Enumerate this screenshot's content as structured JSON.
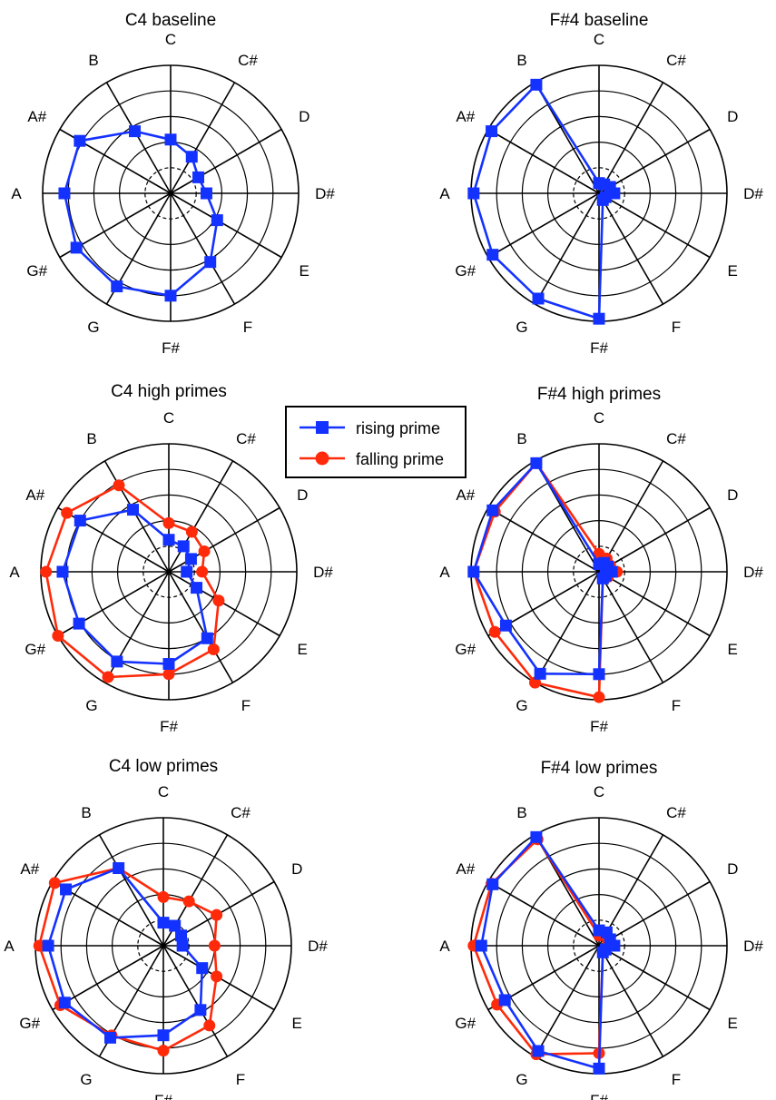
{
  "chart_data": [
    {
      "type": "radar",
      "title": "C4 baseline",
      "axes": [
        "C",
        "C#",
        "D",
        "D#",
        "E",
        "F",
        "F#",
        "G",
        "G#",
        "A",
        "A#",
        "B"
      ],
      "rlim": [
        0,
        1
      ],
      "rings": [
        0.2,
        0.4,
        0.6,
        0.8,
        1.0
      ],
      "series": [
        {
          "key": "rising",
          "values": [
            0.42,
            0.33,
            0.25,
            0.28,
            0.42,
            0.62,
            0.8,
            0.84,
            0.85,
            0.83,
            0.82,
            0.56
          ]
        }
      ]
    },
    {
      "type": "radar",
      "title": "F#4 baseline",
      "axes": [
        "C",
        "C#",
        "D",
        "D#",
        "E",
        "F",
        "F#",
        "G",
        "G#",
        "A",
        "A#",
        "B"
      ],
      "rlim": [
        0,
        1
      ],
      "rings": [
        0.2,
        0.4,
        0.6,
        0.8,
        1.0
      ],
      "series": [
        {
          "key": "rising",
          "values": [
            0.08,
            0.08,
            0.1,
            0.12,
            0.06,
            0.06,
            0.98,
            0.95,
            0.96,
            0.98,
            0.97,
            0.98
          ]
        }
      ]
    },
    {
      "type": "radar",
      "title": "C4 high primes",
      "axes": [
        "C",
        "C#",
        "D",
        "D#",
        "E",
        "F",
        "F#",
        "G",
        "G#",
        "A",
        "A#",
        "B"
      ],
      "rlim": [
        0,
        1
      ],
      "rings": [
        0.2,
        0.4,
        0.6,
        0.8,
        1.0
      ],
      "series": [
        {
          "key": "rising",
          "values": [
            0.25,
            0.23,
            0.2,
            0.14,
            0.25,
            0.6,
            0.72,
            0.81,
            0.81,
            0.83,
            0.8,
            0.56
          ]
        },
        {
          "key": "falling",
          "values": [
            0.38,
            0.36,
            0.32,
            0.26,
            0.45,
            0.7,
            0.8,
            0.95,
            1.0,
            0.96,
            0.92,
            0.78
          ]
        }
      ]
    },
    {
      "type": "radar",
      "title": "F#4 high primes",
      "axes": [
        "C",
        "C#",
        "D",
        "D#",
        "E",
        "F",
        "F#",
        "G",
        "G#",
        "A",
        "A#",
        "B"
      ],
      "rlim": [
        0,
        1
      ],
      "rings": [
        0.2,
        0.4,
        0.6,
        0.8,
        1.0
      ],
      "series": [
        {
          "key": "rising",
          "values": [
            0.06,
            0.08,
            0.08,
            0.1,
            0.06,
            0.06,
            0.8,
            0.92,
            0.84,
            0.98,
            0.96,
            0.98
          ]
        },
        {
          "key": "falling",
          "values": [
            0.14,
            0.12,
            0.1,
            0.14,
            0.08,
            0.06,
            0.98,
            1.0,
            0.94,
            0.98,
            0.94,
            0.98
          ]
        }
      ]
    },
    {
      "type": "radar",
      "title": "C4 low primes",
      "axes": [
        "C",
        "C#",
        "D",
        "D#",
        "E",
        "F",
        "F#",
        "G",
        "G#",
        "A",
        "A#",
        "B"
      ],
      "rlim": [
        0,
        1
      ],
      "rings": [
        0.2,
        0.4,
        0.6,
        0.8,
        1.0
      ],
      "series": [
        {
          "key": "rising",
          "values": [
            0.18,
            0.18,
            0.16,
            0.15,
            0.35,
            0.58,
            0.7,
            0.83,
            0.89,
            0.9,
            0.88,
            0.7
          ]
        },
        {
          "key": "falling",
          "values": [
            0.38,
            0.4,
            0.48,
            0.4,
            0.48,
            0.72,
            0.82,
            0.81,
            0.93,
            0.97,
            0.98,
            0.7
          ]
        }
      ]
    },
    {
      "type": "radar",
      "title": "F#4 low primes",
      "axes": [
        "C",
        "C#",
        "D",
        "D#",
        "E",
        "F",
        "F#",
        "G",
        "G#",
        "A",
        "A#",
        "B"
      ],
      "rlim": [
        0,
        1
      ],
      "rings": [
        0.2,
        0.4,
        0.6,
        0.8,
        1.0
      ],
      "series": [
        {
          "key": "rising",
          "values": [
            0.12,
            0.12,
            0.1,
            0.12,
            0.06,
            0.06,
            0.96,
            0.95,
            0.85,
            0.92,
            0.96,
            0.98
          ]
        },
        {
          "key": "falling",
          "values": [
            0.08,
            0.1,
            0.08,
            0.1,
            0.06,
            0.06,
            0.84,
            0.98,
            0.92,
            0.98,
            0.97,
            0.96
          ]
        }
      ]
    }
  ],
  "legend": {
    "items": [
      {
        "key": "rising",
        "label": "rising prime",
        "marker": "square",
        "color": "#1432ff"
      },
      {
        "key": "falling",
        "label": "falling prime",
        "marker": "circle",
        "color": "#ff2a0a"
      }
    ],
    "placement": "center"
  },
  "colors": {
    "rising": "#1432ff",
    "falling": "#ff2a0a",
    "axis": "#000000"
  }
}
